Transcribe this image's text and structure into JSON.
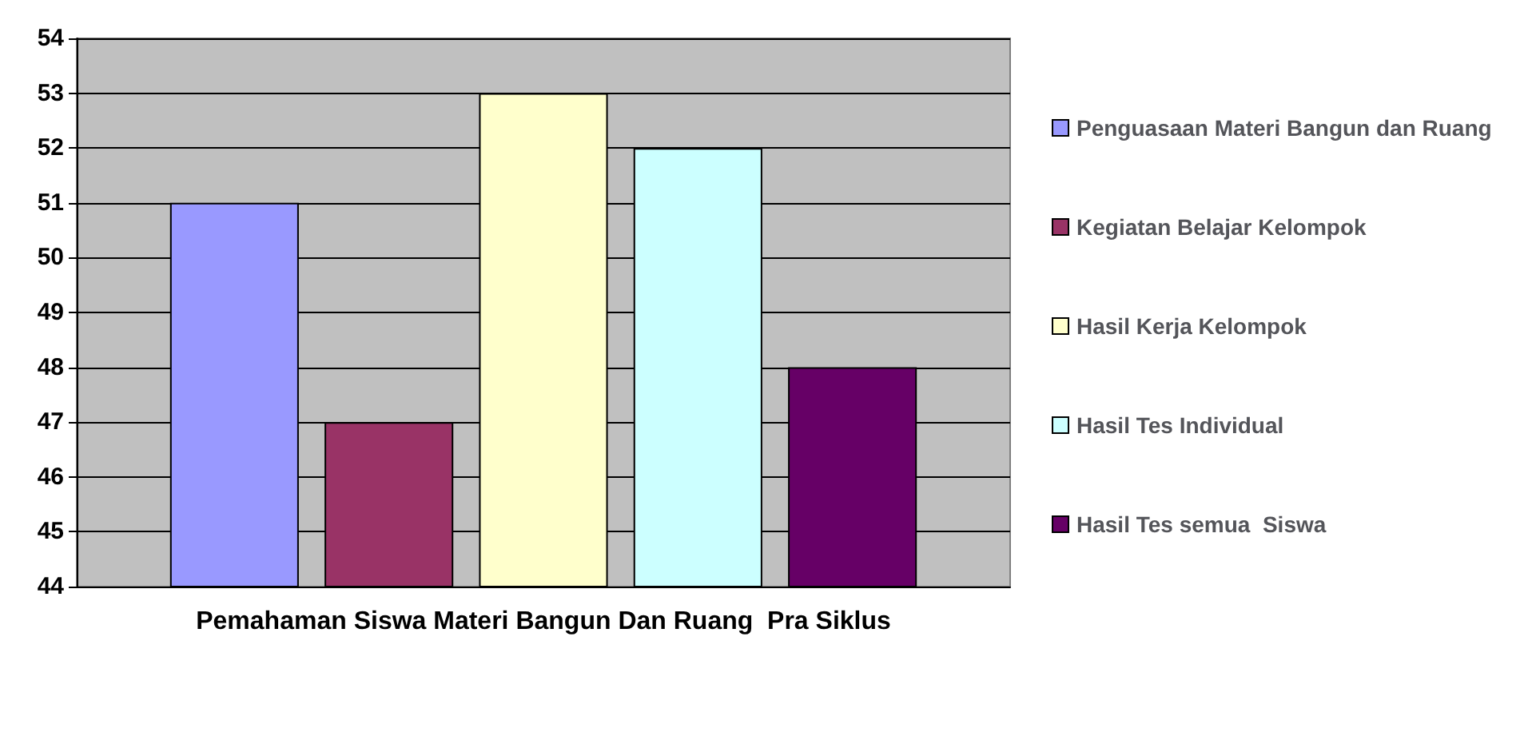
{
  "chart_data": {
    "type": "bar",
    "categories": [
      "Pemahaman Siswa Materi Bangun Dan Ruang  Pra Siklus"
    ],
    "series": [
      {
        "name": "Penguasaan Materi Bangun dan Ruang",
        "color": "#9999ff",
        "values": [
          51
        ]
      },
      {
        "name": "Kegiatan Belajar Kelompok",
        "color": "#993366",
        "values": [
          47
        ]
      },
      {
        "name": "Hasil Kerja Kelompok",
        "color": "#ffffcc",
        "values": [
          53
        ]
      },
      {
        "name": "Hasil Tes Individual",
        "color": "#ccffff",
        "values": [
          52
        ]
      },
      {
        "name": "Hasil Tes semua  Siswa",
        "color": "#660066",
        "values": [
          48
        ]
      }
    ],
    "ylim": [
      44,
      54
    ],
    "yticks": [
      44,
      45,
      46,
      47,
      48,
      49,
      50,
      51,
      52,
      53,
      54
    ],
    "grid": "y",
    "legend": "right"
  }
}
